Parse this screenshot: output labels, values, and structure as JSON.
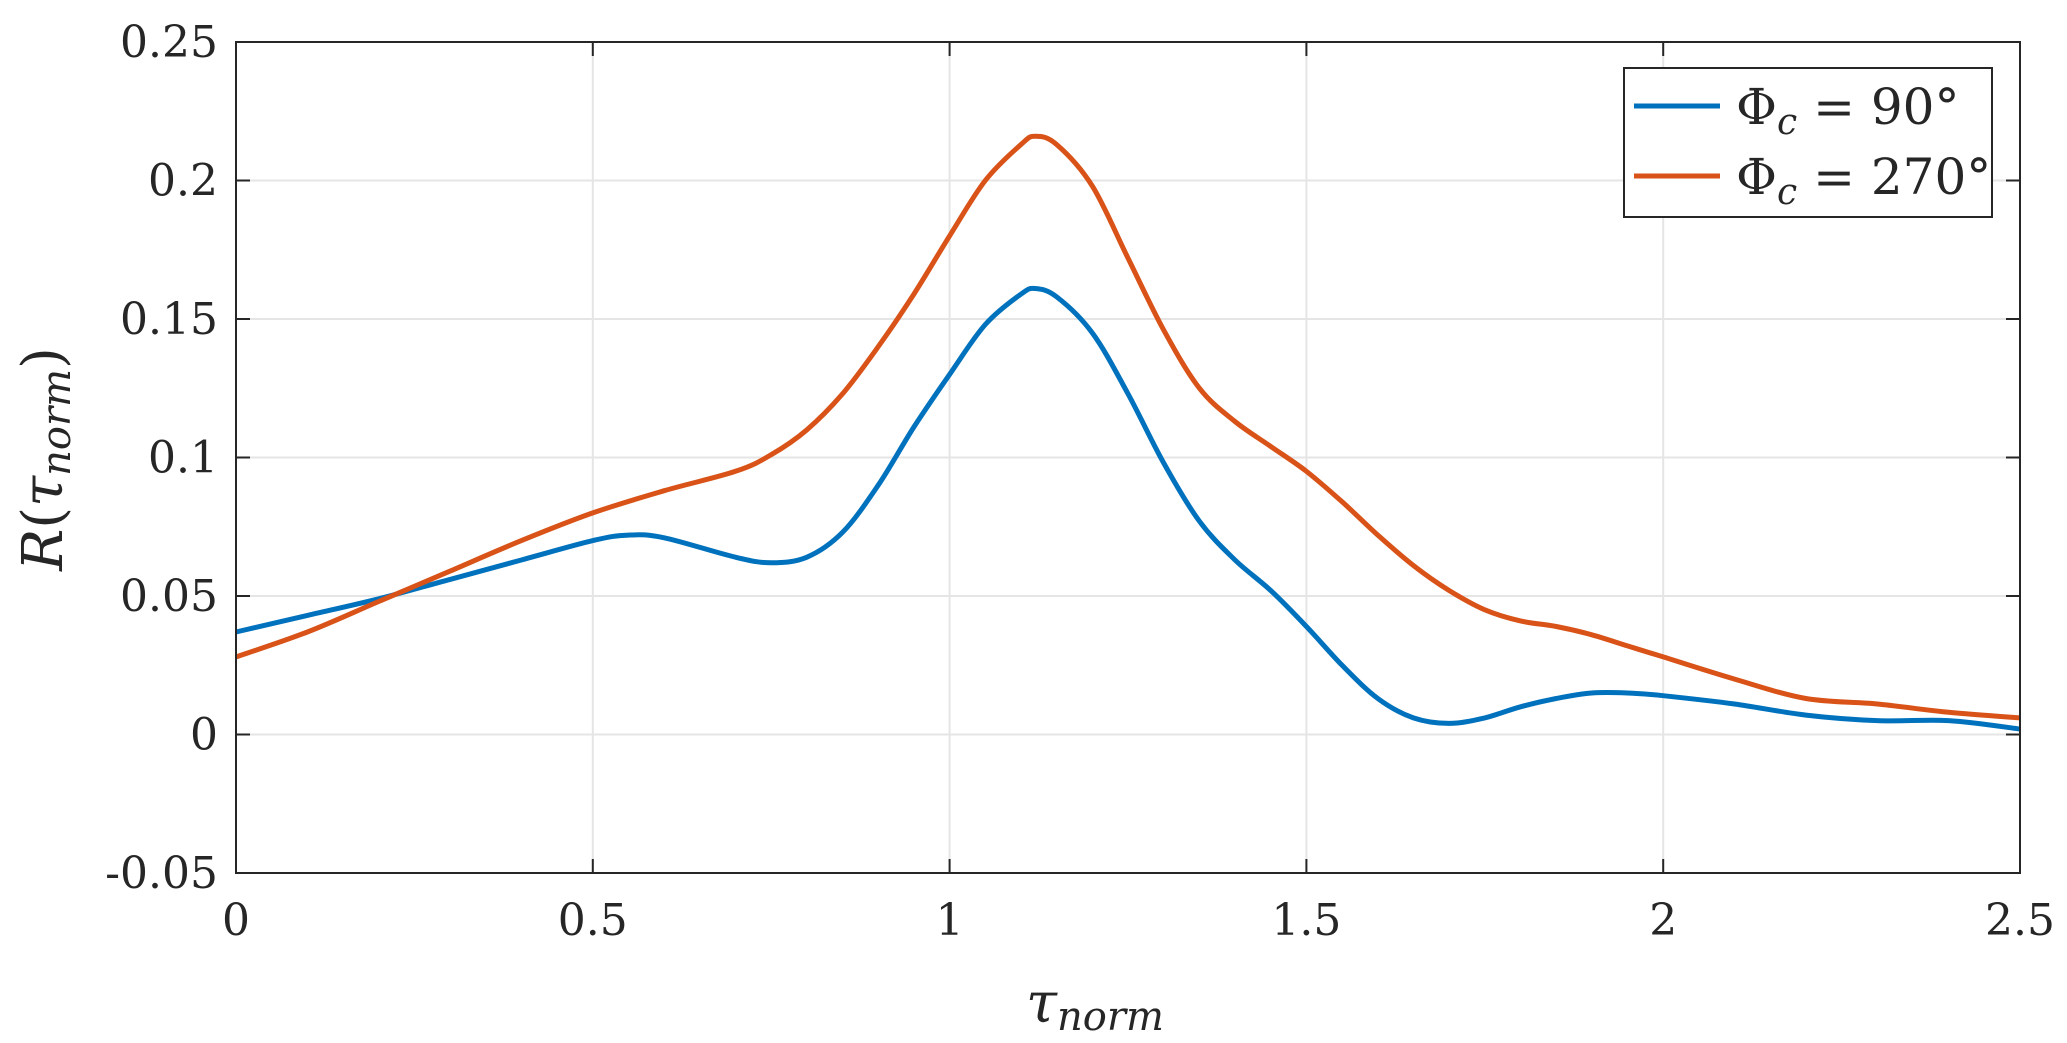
{
  "chart_data": {
    "type": "line",
    "xlabel": "τnorm",
    "ylabel": "R(τnorm)",
    "xlim": [
      0,
      2.5
    ],
    "ylim": [
      -0.05,
      0.25
    ],
    "xticks": [
      0,
      0.5,
      1,
      1.5,
      2,
      2.5
    ],
    "xtick_labels": [
      "0",
      "0.5",
      "1",
      "1.5",
      "2",
      "2.5"
    ],
    "yticks": [
      -0.05,
      0,
      0.05,
      0.1,
      0.15,
      0.2,
      0.25
    ],
    "ytick_labels": [
      "-0.05",
      "0",
      "0.05",
      "0.1",
      "0.15",
      "0.2",
      "0.25"
    ],
    "grid": true,
    "legend_position": "top-right",
    "series": [
      {
        "name": "Φc = 90°",
        "color": "#0072BD",
        "x": [
          0,
          0.1,
          0.2,
          0.3,
          0.4,
          0.5,
          0.55,
          0.6,
          0.7,
          0.75,
          0.8,
          0.85,
          0.9,
          0.95,
          1.0,
          1.05,
          1.1,
          1.12,
          1.15,
          1.2,
          1.25,
          1.3,
          1.35,
          1.4,
          1.45,
          1.5,
          1.55,
          1.6,
          1.65,
          1.7,
          1.75,
          1.8,
          1.85,
          1.9,
          1.95,
          2.0,
          2.1,
          2.2,
          2.3,
          2.4,
          2.5
        ],
        "y": [
          0.037,
          0.043,
          0.049,
          0.056,
          0.063,
          0.07,
          0.072,
          0.071,
          0.064,
          0.062,
          0.064,
          0.073,
          0.09,
          0.111,
          0.13,
          0.148,
          0.159,
          0.161,
          0.158,
          0.145,
          0.123,
          0.098,
          0.077,
          0.063,
          0.052,
          0.039,
          0.025,
          0.013,
          0.006,
          0.004,
          0.006,
          0.01,
          0.013,
          0.015,
          0.015,
          0.014,
          0.011,
          0.007,
          0.005,
          0.005,
          0.002
        ]
      },
      {
        "name": "Φc = 270°",
        "color": "#D95319",
        "x": [
          0,
          0.1,
          0.2,
          0.3,
          0.4,
          0.5,
          0.6,
          0.7,
          0.75,
          0.8,
          0.85,
          0.9,
          0.95,
          1.0,
          1.05,
          1.1,
          1.12,
          1.15,
          1.2,
          1.25,
          1.3,
          1.35,
          1.4,
          1.45,
          1.5,
          1.55,
          1.6,
          1.65,
          1.7,
          1.75,
          1.8,
          1.85,
          1.9,
          1.95,
          2.0,
          2.1,
          2.2,
          2.3,
          2.4,
          2.5
        ],
        "y": [
          0.028,
          0.037,
          0.048,
          0.059,
          0.07,
          0.08,
          0.088,
          0.095,
          0.101,
          0.11,
          0.123,
          0.14,
          0.159,
          0.18,
          0.2,
          0.213,
          0.216,
          0.213,
          0.198,
          0.172,
          0.146,
          0.125,
          0.113,
          0.104,
          0.095,
          0.084,
          0.072,
          0.061,
          0.052,
          0.045,
          0.041,
          0.039,
          0.036,
          0.032,
          0.028,
          0.02,
          0.013,
          0.011,
          0.008,
          0.006
        ]
      }
    ]
  }
}
